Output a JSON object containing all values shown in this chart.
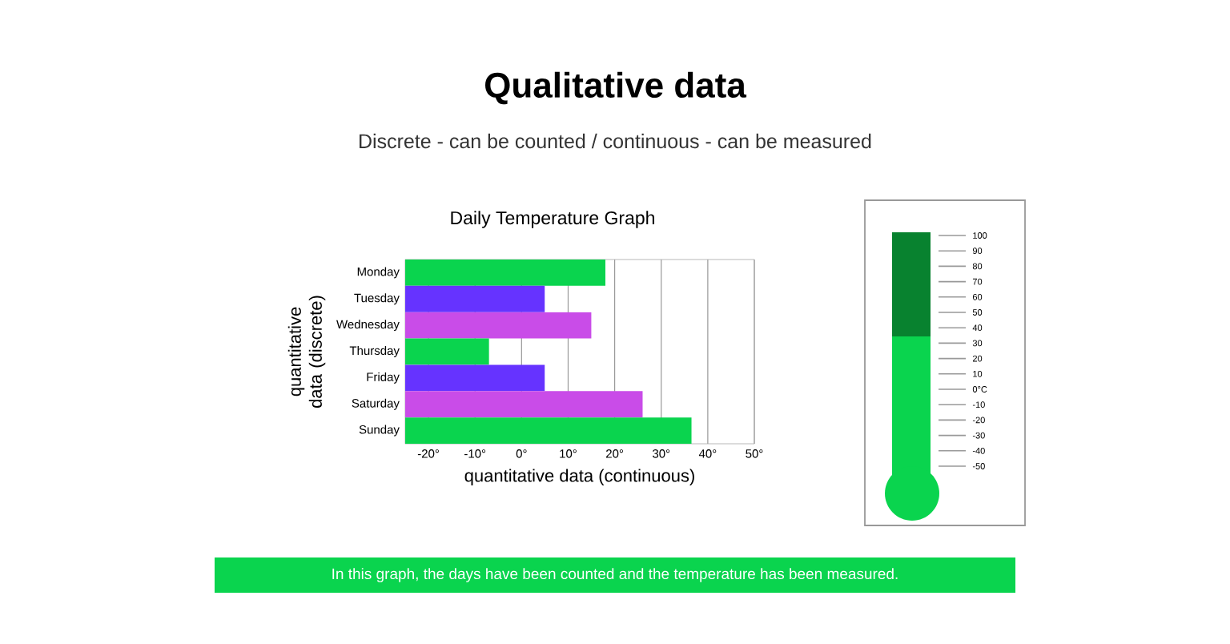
{
  "chart_data": {
    "type": "bar",
    "orientation": "horizontal",
    "title": "Qualitative data",
    "subtitle": "Discrete - can be counted / continuous - can be measured",
    "xlabel": "quantitative data (continuous)",
    "ylabel": "quantitative data (discrete)",
    "annotations": [
      "Daily Temperature Graph",
      "In this graph, the days have been counted and the temperature has been measured.",
      "100",
      "90",
      "80",
      "70",
      "60",
      "50",
      "40",
      "30",
      "20",
      "10",
      "0°C",
      "-10",
      "-20",
      "-30",
      "-40",
      "-50"
    ],
    "categories": [
      "Monday",
      "Tuesday",
      "Wednesday",
      "Thursday",
      "Friday",
      "Saturday",
      "Sunday"
    ],
    "base": [
      -25,
      -25,
      -25,
      -25,
      -25,
      -25,
      -25
    ],
    "values": [
      43,
      30,
      40,
      18,
      30,
      51,
      61.5
    ],
    "colors": [
      "#0ad44e",
      "#6633ff",
      "#c94ce8",
      "#0ad44e",
      "#6633ff",
      "#c94ce8",
      "#0ad44e"
    ],
    "xlim": [
      -25,
      50
    ],
    "xticks": [
      {
        "value": -20,
        "label": "-20°"
      },
      {
        "value": -10,
        "label": "-10°"
      },
      {
        "value": 0,
        "label": "0°"
      },
      {
        "value": 10,
        "label": "10°"
      },
      {
        "value": 20,
        "label": "20°"
      },
      {
        "value": 30,
        "label": "30°"
      },
      {
        "value": 40,
        "label": "40°"
      },
      {
        "value": 50,
        "label": "50°"
      }
    ],
    "grid": "x"
  }
}
